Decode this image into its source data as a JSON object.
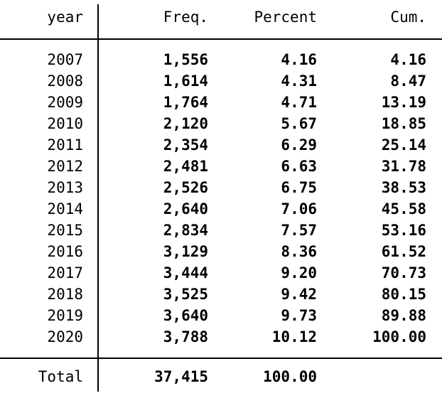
{
  "colors": {
    "text": "#000000",
    "background": "#ffffff",
    "rule": "#000000"
  },
  "table": {
    "headers": {
      "year": "year",
      "freq": "Freq.",
      "percent": "Percent",
      "cum": "Cum."
    },
    "rows": [
      {
        "year": "2007",
        "freq": "1,556",
        "percent": "4.16",
        "cum": "4.16"
      },
      {
        "year": "2008",
        "freq": "1,614",
        "percent": "4.31",
        "cum": "8.47"
      },
      {
        "year": "2009",
        "freq": "1,764",
        "percent": "4.71",
        "cum": "13.19"
      },
      {
        "year": "2010",
        "freq": "2,120",
        "percent": "5.67",
        "cum": "18.85"
      },
      {
        "year": "2011",
        "freq": "2,354",
        "percent": "6.29",
        "cum": "25.14"
      },
      {
        "year": "2012",
        "freq": "2,481",
        "percent": "6.63",
        "cum": "31.78"
      },
      {
        "year": "2013",
        "freq": "2,526",
        "percent": "6.75",
        "cum": "38.53"
      },
      {
        "year": "2014",
        "freq": "2,640",
        "percent": "7.06",
        "cum": "45.58"
      },
      {
        "year": "2015",
        "freq": "2,834",
        "percent": "7.57",
        "cum": "53.16"
      },
      {
        "year": "2016",
        "freq": "3,129",
        "percent": "8.36",
        "cum": "61.52"
      },
      {
        "year": "2017",
        "freq": "3,444",
        "percent": "9.20",
        "cum": "70.73"
      },
      {
        "year": "2018",
        "freq": "3,525",
        "percent": "9.42",
        "cum": "80.15"
      },
      {
        "year": "2019",
        "freq": "3,640",
        "percent": "9.73",
        "cum": "89.88"
      },
      {
        "year": "2020",
        "freq": "3,788",
        "percent": "10.12",
        "cum": "100.00"
      }
    ],
    "total": {
      "label": "Total",
      "freq": "37,415",
      "percent": "100.00",
      "cum": ""
    }
  },
  "chart_data": {
    "type": "table",
    "columns": [
      "year",
      "Freq.",
      "Percent",
      "Cum."
    ],
    "rows": [
      [
        "2007",
        1556,
        4.16,
        4.16
      ],
      [
        "2008",
        1614,
        4.31,
        8.47
      ],
      [
        "2009",
        1764,
        4.71,
        13.19
      ],
      [
        "2010",
        2120,
        5.67,
        18.85
      ],
      [
        "2011",
        2354,
        6.29,
        25.14
      ],
      [
        "2012",
        2481,
        6.63,
        31.78
      ],
      [
        "2013",
        2526,
        6.75,
        38.53
      ],
      [
        "2014",
        2640,
        7.06,
        45.58
      ],
      [
        "2015",
        2834,
        7.57,
        53.16
      ],
      [
        "2016",
        3129,
        8.36,
        61.52
      ],
      [
        "2017",
        3444,
        9.2,
        70.73
      ],
      [
        "2018",
        3525,
        9.42,
        80.15
      ],
      [
        "2019",
        3640,
        9.73,
        89.88
      ],
      [
        "2020",
        3788,
        10.12,
        100.0
      ]
    ],
    "total_row": [
      "Total",
      37415,
      100.0,
      null
    ],
    "title": "",
    "notes": "One-way frequency tabulation of year; values right-aligned, data cells bold"
  }
}
